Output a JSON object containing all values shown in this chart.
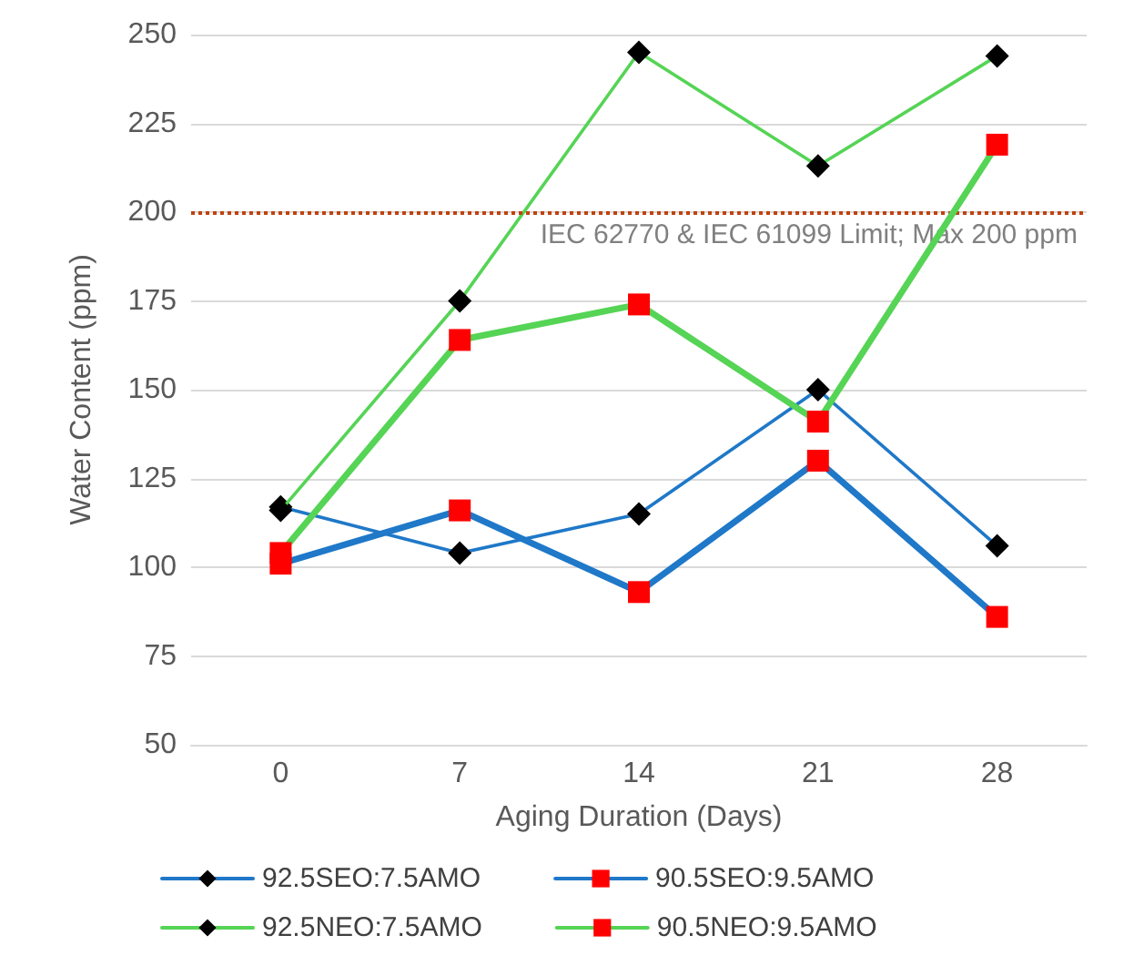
{
  "chart_data": {
    "type": "line",
    "xlabel": "Aging Duration (Days)",
    "ylabel": "Water Content (ppm)",
    "categories": [
      "0",
      "7",
      "14",
      "21",
      "28"
    ],
    "series": [
      {
        "name": "92.5SEO:7.5AMO",
        "color": "#1f78c8",
        "marker": "diamond",
        "values": [
          117,
          104,
          115,
          150,
          106
        ]
      },
      {
        "name": "90.5SEO:9.5AMO",
        "color": "#1f78c8",
        "marker": "square",
        "values": [
          101,
          116,
          93,
          130,
          86
        ]
      },
      {
        "name": "92.5NEO:7.5AMO",
        "color": "#55d455",
        "marker": "diamond",
        "values": [
          116,
          175,
          245,
          213,
          244
        ]
      },
      {
        "name": "90.5NEO:9.5AMO",
        "color": "#55d455",
        "marker": "square",
        "values": [
          104,
          164,
          174,
          141,
          219
        ]
      }
    ],
    "ylim": [
      50,
      250
    ],
    "yticks": [
      50,
      75,
      100,
      125,
      150,
      175,
      200,
      225,
      250
    ],
    "grid": "y",
    "legend": "bottom",
    "line_style": "solid",
    "ref_lines": [
      {
        "axis": "y",
        "value": 200,
        "label": "IEC 62770 & IEC 61099 Limit; Max 200 ppm",
        "color": "#c0420f",
        "line_style": "dotted"
      }
    ]
  }
}
